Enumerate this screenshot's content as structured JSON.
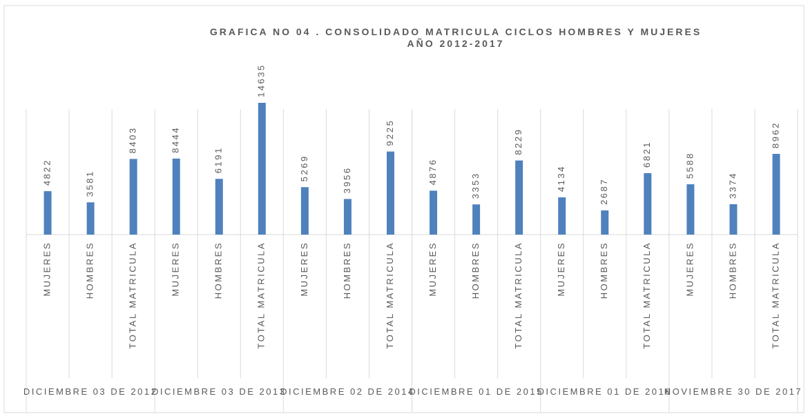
{
  "chart_data": {
    "type": "bar",
    "title": "GRAFICA  NO 04 . CONSOLIDADO MATRICULA CICLOS HOMBRES Y MUJERES AÑO 2012-2017",
    "categories": [
      "MUJERES",
      "HOMBRES",
      "TOTAL MATRICULA",
      "MUJERES",
      "HOMBRES",
      "TOTAL MATRICULA",
      "MUJERES",
      "HOMBRES",
      "TOTAL MATRICULA",
      "MUJERES",
      "HOMBRES",
      "TOTAL MATRICULA",
      "MUJERES",
      "HOMBRES",
      "TOTAL MATRICULA",
      "MUJERES",
      "HOMBRES",
      "TOTAL MATRICULA"
    ],
    "groups": [
      "DICIEMBRE 03 DE 2012",
      "DICIEMBRE 03 DE 2013",
      "DICIEMBRE 02 DE 2014",
      "DICIEMBRE 01 DE 2015",
      "DICIEMBRE 01 DE 2016",
      "NOVIEMBRE 30 DE 2017"
    ],
    "values": [
      4822,
      3581,
      8403,
      8444,
      6191,
      14635,
      5269,
      3956,
      9225,
      4876,
      3353,
      8229,
      4134,
      2687,
      6821,
      5588,
      3374,
      8962
    ],
    "color": "#4f81bd"
  }
}
